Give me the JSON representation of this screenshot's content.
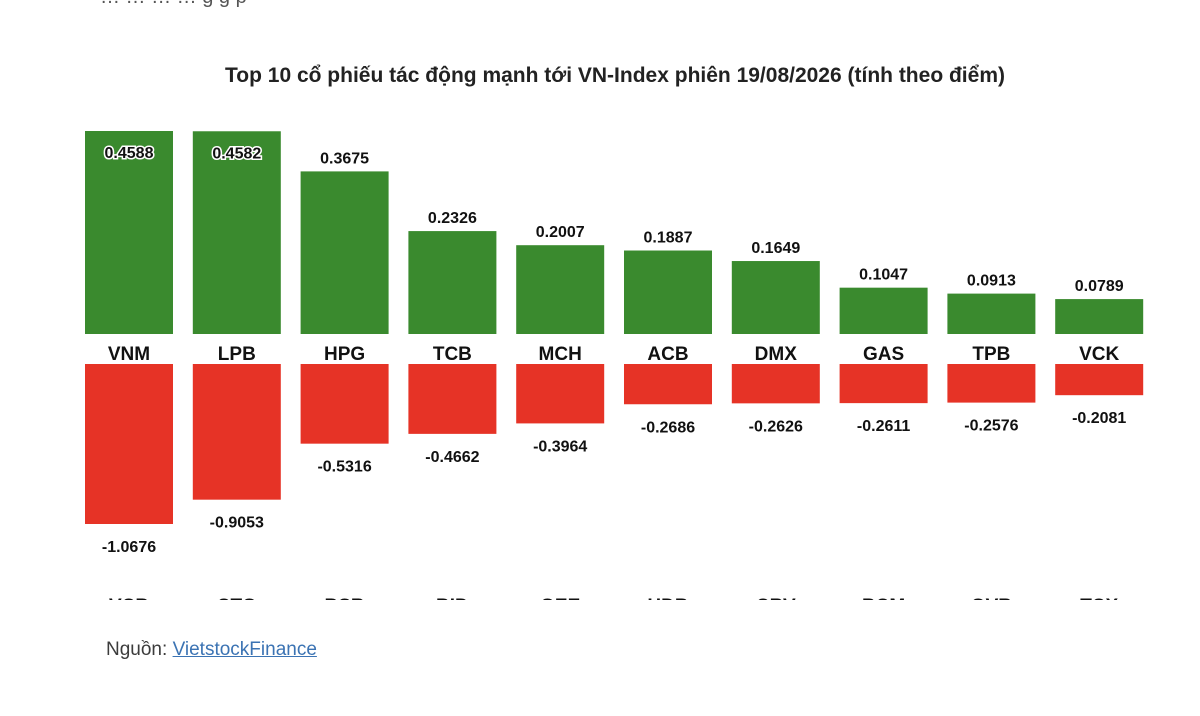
{
  "chart_data": {
    "type": "bar",
    "title": "Top 10 cổ phiếu tác động mạnh tới VN-Index phiên 19/08/2026 (tính theo điểm)",
    "positive": {
      "categories": [
        "VNM",
        "LPB",
        "HPG",
        "TCB",
        "MCH",
        "ACB",
        "DMX",
        "GAS",
        "TPB",
        "VCK"
      ],
      "values": [
        0.4588,
        0.4582,
        0.3675,
        0.2326,
        0.2007,
        0.1887,
        0.1649,
        0.1047,
        0.0913,
        0.0789
      ],
      "color": "#3a8a2e"
    },
    "negative": {
      "categories": [
        "VCB",
        "CTG",
        "BSR",
        "BID",
        "GEE",
        "HDB",
        "CRV",
        "BCM",
        "GVR",
        "TCX"
      ],
      "values": [
        -1.0676,
        -0.9053,
        -0.5316,
        -0.4662,
        -0.3964,
        -0.2686,
        -0.2626,
        -0.2611,
        -0.2576,
        -0.2081
      ],
      "color": "#e63326"
    },
    "grid": false,
    "legend": "none"
  },
  "source": {
    "label": "Nguồn:",
    "link_text": "VietstockFinance"
  },
  "top_cut_text": "…  …  …  … g g p"
}
